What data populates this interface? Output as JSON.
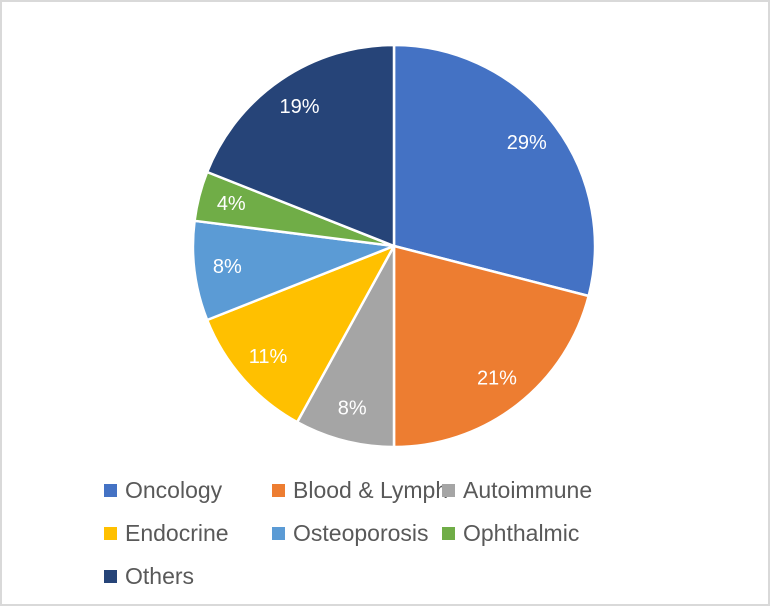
{
  "chart": {
    "background_color": "#FFFFFF",
    "border_color": "#D9D9D9",
    "title": "",
    "legend_text_color": "#595959"
  },
  "chart_data": {
    "type": "pie",
    "categories": [
      "Oncology",
      "Blood & Lymph",
      "Autoimmune",
      "Endocrine",
      "Osteoporosis",
      "Ophthalmic",
      "Others"
    ],
    "values": [
      29,
      21,
      8,
      11,
      8,
      4,
      19
    ],
    "data_labels": [
      "29%",
      "21%",
      "8%",
      "11%",
      "8%",
      "4%",
      "19%"
    ],
    "series_colors": [
      "#4472C4",
      "#ED7D31",
      "#A5A5A5",
      "#FFC000",
      "#5B9BD5",
      "#70AD47",
      "#264478"
    ],
    "data_label_color": "#FFFFFF",
    "slice_border_color": "#FFFFFF",
    "start_angle_deg": 0,
    "direction": "clockwise",
    "legend_position": "bottom",
    "title": ""
  }
}
